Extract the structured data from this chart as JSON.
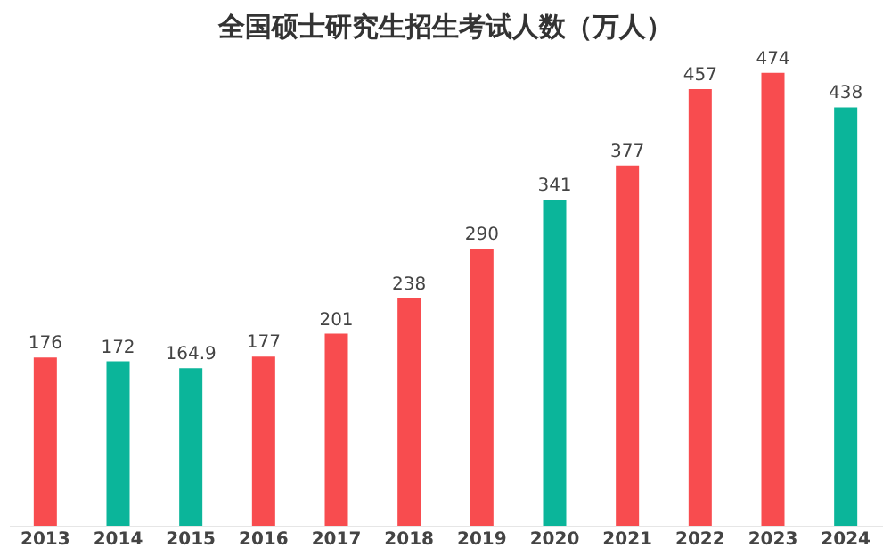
{
  "chart_data": {
    "type": "bar",
    "title": "全国硕士研究生招生考试人数（万人）",
    "categories": [
      "2013",
      "2014",
      "2015",
      "2016",
      "2017",
      "2018",
      "2019",
      "2020",
      "2021",
      "2022",
      "2023",
      "2024"
    ],
    "values": [
      176,
      172,
      164.9,
      177,
      201,
      238,
      290,
      341,
      377,
      457,
      474,
      438
    ],
    "colors": [
      "#f84c4f",
      "#0bb59a",
      "#0bb59a",
      "#f84c4f",
      "#f84c4f",
      "#f84c4f",
      "#f84c4f",
      "#0bb59a",
      "#f84c4f",
      "#f84c4f",
      "#f84c4f",
      "#0bb59a"
    ],
    "data_labels": true
  }
}
